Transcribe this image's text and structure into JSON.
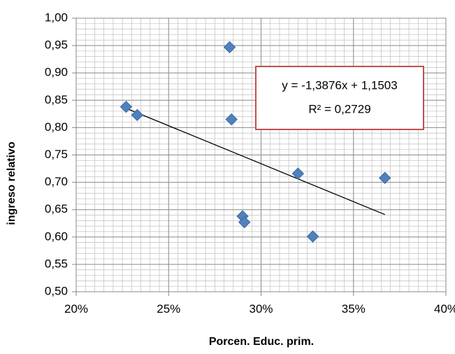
{
  "chart_data": {
    "type": "scatter",
    "xlabel": "Porcen. Educ. prim.",
    "ylabel": "ingreso relativo",
    "xlim": [
      0.2,
      0.4
    ],
    "ylim": [
      0.5,
      1.0
    ],
    "x_ticks": [
      {
        "value": 0.2,
        "label": "20%"
      },
      {
        "value": 0.25,
        "label": "25%"
      },
      {
        "value": 0.3,
        "label": "30%"
      },
      {
        "value": 0.35,
        "label": "35%"
      },
      {
        "value": 0.4,
        "label": "40%"
      }
    ],
    "y_ticks": [
      {
        "value": 0.5,
        "label": "0,50"
      },
      {
        "value": 0.55,
        "label": "0,55"
      },
      {
        "value": 0.6,
        "label": "0,60"
      },
      {
        "value": 0.65,
        "label": "0,65"
      },
      {
        "value": 0.7,
        "label": "0,70"
      },
      {
        "value": 0.75,
        "label": "0,75"
      },
      {
        "value": 0.8,
        "label": "0,80"
      },
      {
        "value": 0.85,
        "label": "0,85"
      },
      {
        "value": 0.9,
        "label": "0,90"
      },
      {
        "value": 0.95,
        "label": "0,95"
      },
      {
        "value": 1.0,
        "label": "1,00"
      }
    ],
    "grid": true,
    "minor_grid": true,
    "points": [
      {
        "x": 0.227,
        "y": 0.838
      },
      {
        "x": 0.233,
        "y": 0.823
      },
      {
        "x": 0.283,
        "y": 0.947
      },
      {
        "x": 0.284,
        "y": 0.815
      },
      {
        "x": 0.29,
        "y": 0.638
      },
      {
        "x": 0.291,
        "y": 0.627
      },
      {
        "x": 0.32,
        "y": 0.716
      },
      {
        "x": 0.328,
        "y": 0.601
      },
      {
        "x": 0.367,
        "y": 0.708
      }
    ],
    "trendline": {
      "slope": -1.3876,
      "intercept": 1.1503,
      "x_range": [
        0.227,
        0.367
      ],
      "equation_label": "y = -1,3876x + 1,1503",
      "r2_label": "R² = 0,2729"
    },
    "colors": {
      "marker": "#4F81BD",
      "marker_edge": "#3A67A0",
      "trendline": "#000000",
      "equation_border": "#C0504D",
      "grid": "#BFBFBF"
    }
  }
}
